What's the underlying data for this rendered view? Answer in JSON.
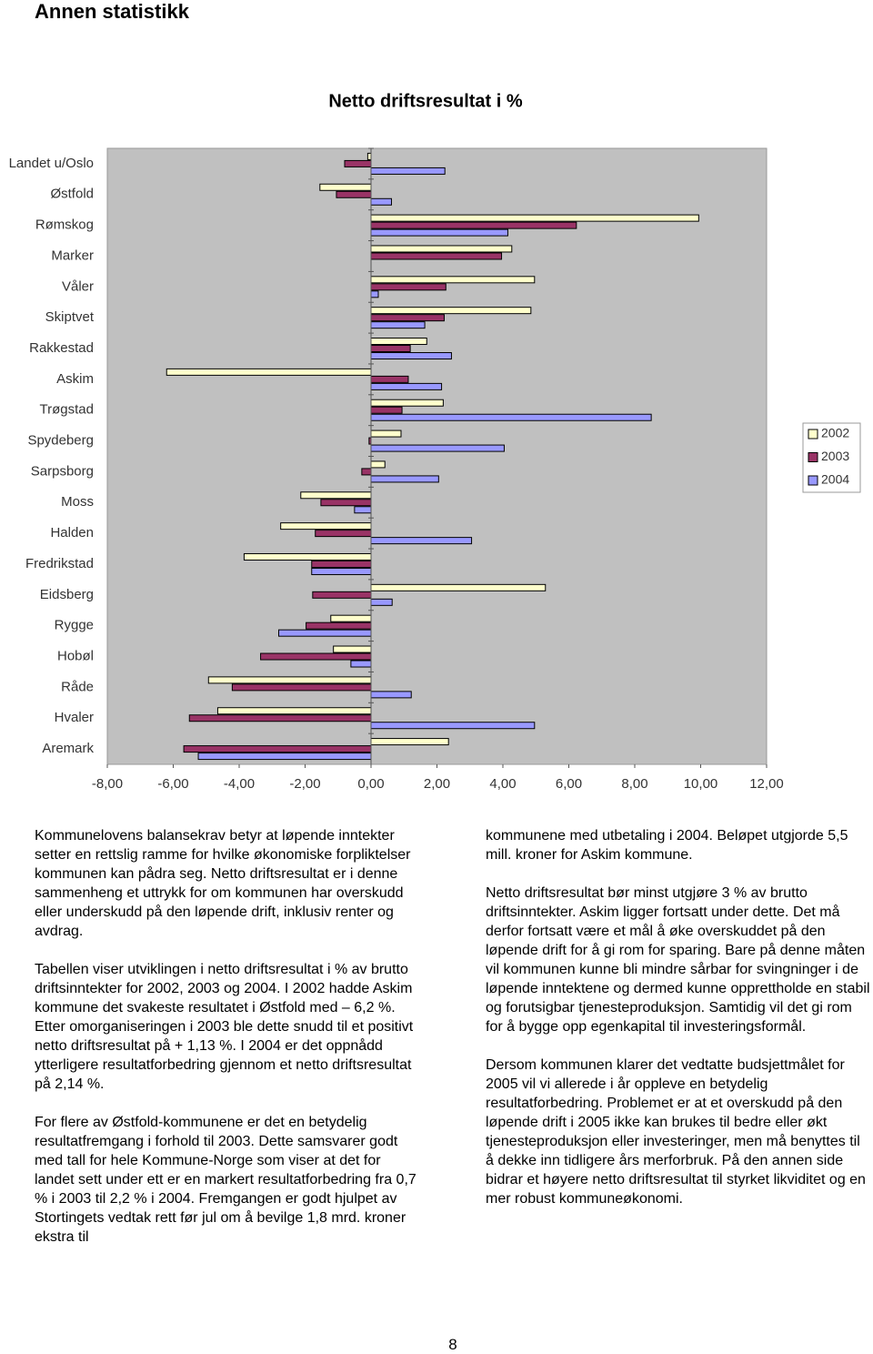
{
  "header": {
    "title": "Annen statistikk"
  },
  "chart_data": {
    "type": "bar",
    "orientation": "horizontal",
    "title": "Netto driftsresultat i %",
    "categories": [
      "Landet u/Oslo",
      "Østfold",
      "Rømskog",
      "Marker",
      "Våler",
      "Skiptvet",
      "Rakkestad",
      "Askim",
      "Trøgstad",
      "Spydeberg",
      "Sarpsborg",
      "Moss",
      "Halden",
      "Fredrikstad",
      "Eidsberg",
      "Rygge",
      "Hobøl",
      "Råde",
      "Hvaler",
      "Aremark"
    ],
    "series": [
      {
        "name": "2002",
        "color": "#ffffcc",
        "values": [
          -0.1,
          -1.55,
          9.94,
          4.27,
          4.96,
          4.85,
          1.69,
          -6.2,
          2.19,
          0.91,
          0.42,
          -2.13,
          -2.74,
          -3.85,
          5.29,
          -1.22,
          -1.14,
          -4.93,
          -4.65,
          2.35
        ]
      },
      {
        "name": "2003",
        "color": "#993366",
        "values": [
          -0.8,
          -1.05,
          6.23,
          3.96,
          2.27,
          2.22,
          1.19,
          1.13,
          0.94,
          -0.06,
          -0.28,
          -1.52,
          -1.69,
          -1.8,
          -1.77,
          -1.97,
          -3.35,
          -4.21,
          -5.51,
          -5.68
        ]
      },
      {
        "name": "2004",
        "color": "#9999ff",
        "values": [
          2.24,
          0.62,
          4.15,
          null,
          0.22,
          1.63,
          2.44,
          2.14,
          8.5,
          4.04,
          2.05,
          -0.5,
          3.05,
          -1.8,
          0.64,
          -2.8,
          -0.61,
          1.22,
          4.96,
          -5.24
        ]
      }
    ],
    "xlim": [
      -8,
      12
    ],
    "xticks": [
      {
        "value": -8,
        "label": "-8,00"
      },
      {
        "value": -6,
        "label": "-6,00"
      },
      {
        "value": -4,
        "label": "-4,00"
      },
      {
        "value": -2,
        "label": "-2,00"
      },
      {
        "value": 0,
        "label": "0,00"
      },
      {
        "value": 2,
        "label": "2,00"
      },
      {
        "value": 4,
        "label": "4,00"
      },
      {
        "value": 6,
        "label": "6,00"
      },
      {
        "value": 8,
        "label": "8,00"
      },
      {
        "value": 10,
        "label": "10,00"
      },
      {
        "value": 12,
        "label": "12,00"
      }
    ],
    "legend": "right",
    "background": "#c0c0c0"
  },
  "text": {
    "left": [
      "Kommunelovens balansekrav betyr at løpende inntekter setter en rettslig ramme for hvilke økonomiske forpliktelser kommunen kan pådra seg. Netto driftsresultat er i denne sammenheng et uttrykk for om kommunen har overskudd eller underskudd på den løpende drift, inklusiv renter og avdrag.",
      "Tabellen viser utviklingen i netto driftsresultat i % av brutto driftsinntekter for 2002, 2003 og 2004. I 2002 hadde Askim kommune det svakeste resultatet i Østfold med – 6,2 %. Etter omorganiseringen i 2003 ble dette snudd til et positivt netto driftsresultat på + 1,13 %. I 2004 er det oppnådd ytterligere resultatforbedring gjennom et netto driftsresultat på 2,14 %.",
      "For flere av Østfold-kommunene er det en betydelig resultatfremgang i forhold til 2003. Dette samsvarer godt med tall for hele Kommune-Norge som viser at det for landet sett under ett er en markert resultatforbedring fra 0,7 % i 2003 til 2,2 % i 2004. Fremgangen er godt hjulpet av Stortingets vedtak rett før jul om å bevilge 1,8 mrd. kroner ekstra til"
    ],
    "right": [
      "kommunene med utbetaling i 2004. Beløpet utgjorde 5,5 mill. kroner for Askim kommune.",
      "Netto driftsresultat bør minst utgjøre 3 % av brutto driftsinntekter. Askim ligger fortsatt under dette. Det må derfor fortsatt være et mål å øke overskuddet på den løpende drift for å gi rom for sparing. Bare på denne måten vil kommunen kunne bli mindre sårbar for svingninger i de løpende inntektene og dermed kunne opprettholde en stabil og forutsigbar tjenesteproduksjon. Samtidig vil det gi rom for å bygge opp egenkapital til investeringsformål.",
      "Dersom kommunen klarer det vedtatte budsjettmålet for 2005 vil vi allerede i år oppleve en betydelig resultatforbedring. Problemet er at et overskudd på den løpende drift i 2005 ikke kan brukes til bedre eller økt tjenesteproduksjon eller investeringer, men må benyttes til å dekke inn tidligere års merforbruk. På den annen side bidrar et høyere netto driftsresultat til styrket likviditet og en mer robust kommuneøkonomi."
    ]
  },
  "footer": {
    "page": "8"
  }
}
